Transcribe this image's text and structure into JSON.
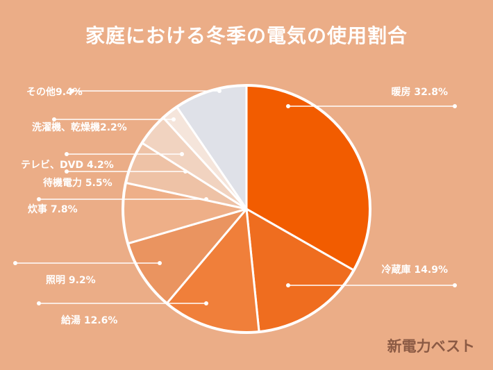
{
  "title": "家庭における冬季の電気の使用割合",
  "brand": "新電力ベスト",
  "chart_data": {
    "type": "pie",
    "unit": "%",
    "slices": [
      {
        "label": "暖房",
        "value": 32.8,
        "display": "暖房 32.8%",
        "color": "#F25C00"
      },
      {
        "label": "冷蔵庫",
        "value": 14.9,
        "display": "冷蔵庫 14.9%",
        "color": "#EF6D1F"
      },
      {
        "label": "給湯",
        "value": 12.6,
        "display": "給湯 12.6%",
        "color": "#F07F3A"
      },
      {
        "label": "照明",
        "value": 9.2,
        "display": "照明 9.2%",
        "color": "#EA9460"
      },
      {
        "label": "炊事",
        "value": 7.8,
        "display": "炊事 7.8%",
        "color": "#EEAF88"
      },
      {
        "label": "待機電力",
        "value": 5.5,
        "display": "待機電力 5.5%",
        "color": "#EEC2A6"
      },
      {
        "label": "テレビ、DVD",
        "value": 4.2,
        "display": "テレビ、DVD 4.2%",
        "color": "#F1D3C0"
      },
      {
        "label": "洗濯機、乾燥機",
        "value": 2.2,
        "display": "洗濯機、乾燥機2.2%",
        "color": "#F5E5DB"
      },
      {
        "label": "その他",
        "value": 9.4,
        "display": "その他9.4%",
        "color": "#DFE1E8"
      }
    ]
  }
}
